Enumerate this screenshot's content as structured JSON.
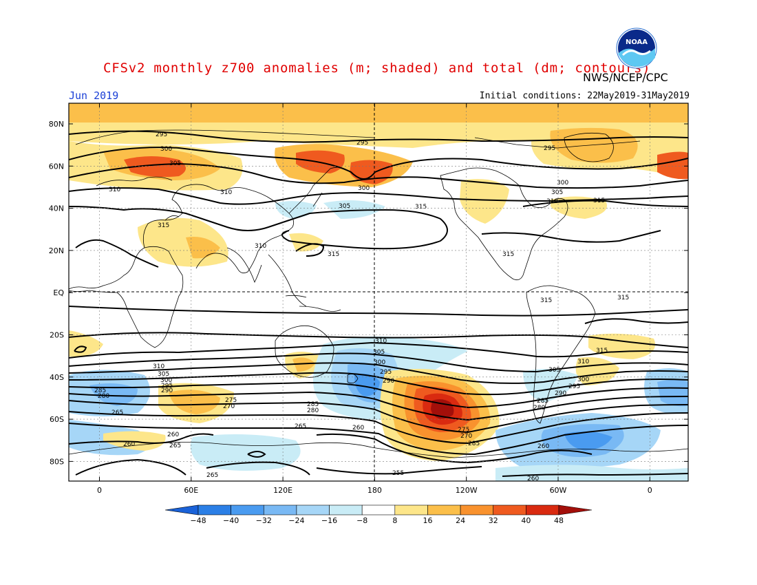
{
  "header": {
    "title": "CFSv2 monthly z700 anomalies (m; shaded) and total (dm; contours)",
    "agency": "NWS/NCEP/CPC",
    "month": "Jun 2019",
    "initial_conditions": "Initial conditions: 22May2019-31May2019",
    "logo_text": "NOAA"
  },
  "axes": {
    "lat_labels": [
      "80N",
      "60N",
      "40N",
      "20N",
      "EQ",
      "20S",
      "40S",
      "60S",
      "80S"
    ],
    "lon_labels": [
      "0",
      "60E",
      "120E",
      "180",
      "120W",
      "60W",
      "0"
    ]
  },
  "colorbar": {
    "ticks": [
      "-48",
      "-40",
      "-32",
      "-24",
      "-16",
      "-8",
      "8",
      "16",
      "24",
      "32",
      "40",
      "48"
    ],
    "colors": [
      "#1a62d8",
      "#2b7fe6",
      "#4a9bf0",
      "#79b9f4",
      "#a6d6f7",
      "#c9ecf6",
      "#ffffff",
      "#fde68a",
      "#fbbf4a",
      "#f9922e",
      "#ef5a1f",
      "#d92a10",
      "#a30f0a"
    ]
  },
  "contour_labels": [
    {
      "id": "c295a",
      "text": "295"
    },
    {
      "id": "c300a",
      "text": "300"
    },
    {
      "id": "c305a",
      "text": "305"
    },
    {
      "id": "c310a",
      "text": "310"
    },
    {
      "id": "c315a",
      "text": "315"
    },
    {
      "id": "c310b",
      "text": "310"
    },
    {
      "id": "c310c",
      "text": "310"
    },
    {
      "id": "c295b",
      "text": "295"
    },
    {
      "id": "c300b",
      "text": "300"
    },
    {
      "id": "c305b",
      "text": "305"
    },
    {
      "id": "c315b",
      "text": "315"
    },
    {
      "id": "c315c",
      "text": "315"
    },
    {
      "id": "c295c",
      "text": "295"
    },
    {
      "id": "c300c",
      "text": "300"
    },
    {
      "id": "c305c",
      "text": "305"
    },
    {
      "id": "c310d",
      "text": "310"
    },
    {
      "id": "c315d",
      "text": "315"
    },
    {
      "id": "c315e",
      "text": "315"
    },
    {
      "id": "c315f",
      "text": "315"
    },
    {
      "id": "c315g",
      "text": "315"
    },
    {
      "id": "c310e",
      "text": "310"
    },
    {
      "id": "c305d",
      "text": "305"
    },
    {
      "id": "c300d",
      "text": "300"
    },
    {
      "id": "c295d",
      "text": "295"
    },
    {
      "id": "c290a",
      "text": "290"
    },
    {
      "id": "c315h",
      "text": "315"
    },
    {
      "id": "c310f",
      "text": "310"
    },
    {
      "id": "c305e",
      "text": "305"
    },
    {
      "id": "c300e",
      "text": "300"
    },
    {
      "id": "c295e",
      "text": "295"
    },
    {
      "id": "c290b",
      "text": "290"
    },
    {
      "id": "c310g",
      "text": "310"
    },
    {
      "id": "c305f",
      "text": "305"
    },
    {
      "id": "c300f",
      "text": "300"
    },
    {
      "id": "c295f",
      "text": "295"
    },
    {
      "id": "c290c",
      "text": "290"
    },
    {
      "id": "c285a",
      "text": "285"
    },
    {
      "id": "c280a",
      "text": "280"
    },
    {
      "id": "c275a",
      "text": "275"
    },
    {
      "id": "c270a",
      "text": "270"
    },
    {
      "id": "c265a",
      "text": "265"
    },
    {
      "id": "c285b",
      "text": "285"
    },
    {
      "id": "c280b",
      "text": "280"
    },
    {
      "id": "c265b",
      "text": "265"
    },
    {
      "id": "c260a",
      "text": "260"
    },
    {
      "id": "c275b",
      "text": "275"
    },
    {
      "id": "c270b",
      "text": "270"
    },
    {
      "id": "c285c",
      "text": "285"
    },
    {
      "id": "c285d",
      "text": "285"
    },
    {
      "id": "c280c",
      "text": "280"
    },
    {
      "id": "c260b",
      "text": "260"
    },
    {
      "id": "c260c",
      "text": "260"
    },
    {
      "id": "c265c",
      "text": "265"
    },
    {
      "id": "c260d",
      "text": "260"
    },
    {
      "id": "c265d",
      "text": "265"
    },
    {
      "id": "c255a",
      "text": "255"
    },
    {
      "id": "c260e",
      "text": "260"
    }
  ]
}
